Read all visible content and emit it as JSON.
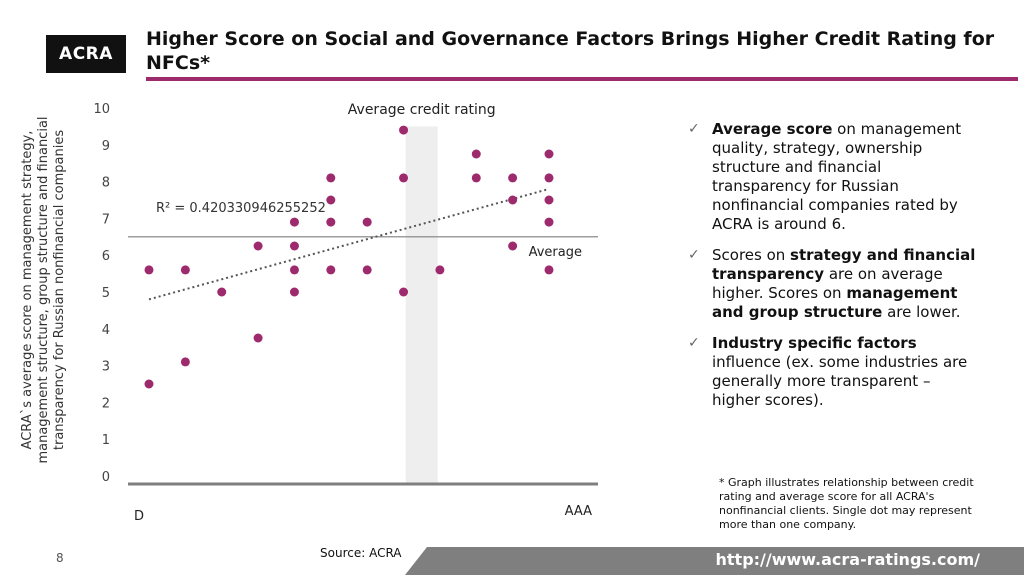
{
  "header": {
    "logo_text": "ACRA",
    "title": "Higher Score on Social and Governance Factors Brings Higher Credit Rating for NFCs*"
  },
  "colors": {
    "accent": "#9e2a6e",
    "dot": "#9e2a6e",
    "footer": "#7f7f7f"
  },
  "chart_data": {
    "type": "scatter",
    "title": "",
    "xlabel": "Average credit rating",
    "ylabel": "ACRA`s average score on management strategy, management structure, group structure and financial transparency for Russian nonfinancial companies",
    "x_tick_labels": [
      "D",
      "AAA"
    ],
    "y_ticks": [
      0,
      1,
      2,
      3,
      4,
      5,
      6,
      7,
      8,
      9,
      10
    ],
    "ylim": [
      0,
      10
    ],
    "xlim": [
      0,
      12
    ],
    "grid": false,
    "r2_label": "R² = 0.420330946255252",
    "average_label": "Average",
    "average_y": 6.5,
    "highlight_column_x": 8.5,
    "trendline": {
      "x": [
        1,
        12
      ],
      "y": [
        4.8,
        7.8
      ]
    },
    "points": [
      {
        "x": 1,
        "y": 5.6
      },
      {
        "x": 1,
        "y": 2.5
      },
      {
        "x": 2,
        "y": 5.6
      },
      {
        "x": 2,
        "y": 3.1
      },
      {
        "x": 3,
        "y": 5.0
      },
      {
        "x": 4,
        "y": 6.25
      },
      {
        "x": 4,
        "y": 3.75
      },
      {
        "x": 5,
        "y": 6.9
      },
      {
        "x": 5,
        "y": 6.25
      },
      {
        "x": 5,
        "y": 5.6
      },
      {
        "x": 5,
        "y": 5.0
      },
      {
        "x": 6,
        "y": 8.1
      },
      {
        "x": 6,
        "y": 7.5
      },
      {
        "x": 6,
        "y": 6.9
      },
      {
        "x": 6,
        "y": 5.6
      },
      {
        "x": 7,
        "y": 6.9
      },
      {
        "x": 7,
        "y": 5.6
      },
      {
        "x": 8,
        "y": 9.4
      },
      {
        "x": 8,
        "y": 8.1
      },
      {
        "x": 8,
        "y": 5.0
      },
      {
        "x": 9,
        "y": 5.6
      },
      {
        "x": 10,
        "y": 8.75
      },
      {
        "x": 10,
        "y": 8.1
      },
      {
        "x": 11,
        "y": 8.1
      },
      {
        "x": 11,
        "y": 7.5
      },
      {
        "x": 11,
        "y": 6.25
      },
      {
        "x": 12,
        "y": 8.75
      },
      {
        "x": 12,
        "y": 8.1
      },
      {
        "x": 12,
        "y": 7.5
      },
      {
        "x": 12,
        "y": 6.9
      },
      {
        "x": 12,
        "y": 5.6
      }
    ]
  },
  "bullets": [
    {
      "bold": "Average score",
      "rest": " on management quality, strategy, ownership structure and financial transparency for Russian nonfinancial companies rated by ACRA is around 6."
    },
    {
      "pre": "Scores on ",
      "bold": "strategy and financial transparency",
      "mid": " are on average higher. Scores on ",
      "bold2": "management and group structure",
      "rest": " are lower."
    },
    {
      "bold": "Industry specific factors",
      "rest": " influence (ex. some industries are generally more transparent – higher scores)."
    }
  ],
  "note": "* Graph illustrates relationship between credit rating and average score for all ACRA's nonfinancial clients. Single dot may represent more than one company.",
  "footer": {
    "page_number": "8",
    "source": "Source: ACRA",
    "url": "http://www.acra-ratings.com/"
  },
  "icons": {
    "bullet": "checkmark-icon"
  }
}
